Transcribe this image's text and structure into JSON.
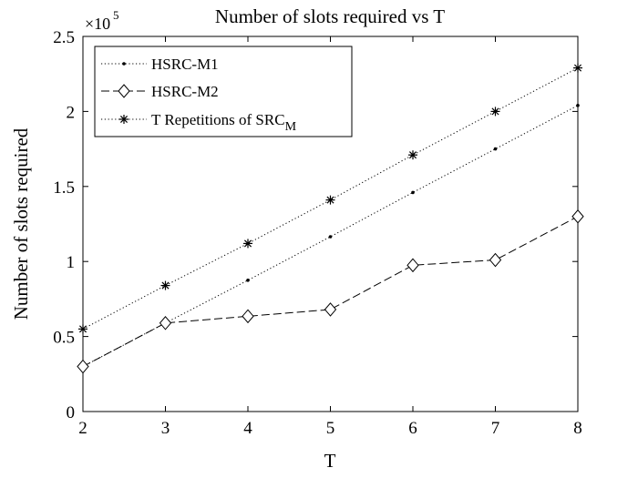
{
  "chart_data": {
    "type": "line",
    "title": "Number of slots required vs T",
    "xlabel": "T",
    "ylabel": "Number of slots required",
    "y_exponent_label": "×10",
    "y_exponent_power": "5",
    "x": [
      2,
      3,
      4,
      5,
      6,
      7,
      8
    ],
    "xlim": [
      2,
      8
    ],
    "ylim": [
      0,
      2.5
    ],
    "y_scale_factor": 100000,
    "x_ticks": [
      2,
      3,
      4,
      5,
      6,
      7,
      8
    ],
    "y_ticks": [
      0,
      0.5,
      1,
      1.5,
      2,
      2.5
    ],
    "y_tick_labels": [
      "0",
      "0.5",
      "1",
      "1.5",
      "2",
      "2.5"
    ],
    "grid": false,
    "legend_position": "top-left",
    "series": [
      {
        "name": "HSRC-M1",
        "values": [
          0.3,
          0.59,
          0.875,
          1.165,
          1.46,
          1.75,
          2.04
        ],
        "line_style": "dotted",
        "marker": "dot",
        "color": "#000000"
      },
      {
        "name": "HSRC-M2",
        "values": [
          0.3,
          0.59,
          0.635,
          0.68,
          0.975,
          1.01,
          1.3
        ],
        "line_style": "dashed",
        "marker": "diamond",
        "color": "#000000"
      },
      {
        "name": "T Repetitions of SRC",
        "name_subscript": "M",
        "values": [
          0.55,
          0.84,
          1.12,
          1.41,
          1.71,
          2.0,
          2.29
        ],
        "line_style": "dotted",
        "marker": "asterisk",
        "color": "#000000"
      }
    ]
  }
}
